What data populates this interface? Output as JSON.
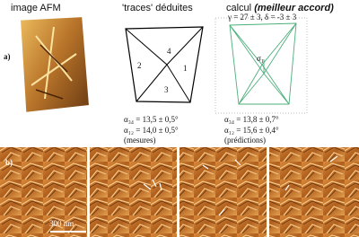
{
  "panel_a": {
    "label": "a)",
    "afm": {
      "title": "image AFM"
    },
    "traces": {
      "title": "'traces' déduites",
      "trace_labels": [
        "4",
        "2",
        "1",
        "3"
      ],
      "results": [
        "α₃₄ = 13,5 ± 0,5°",
        "α₁₂ = 14,0 ± 0,5°"
      ],
      "note": "(mesures)"
    },
    "calc": {
      "title": "calcul",
      "title_emphasis": "(meilleur accord)",
      "fit": "γ = 27 ± 3, δ = -3 ± 3",
      "sigma": "σ₁",
      "results": [
        "α₃₄ = 13,8 ± 0,7°",
        "α₁₂ = 15,6 ± 0,4°"
      ],
      "note": "(prédictions)"
    }
  },
  "panel_b": {
    "label": "b)",
    "scale_bar": "300 nm"
  }
}
